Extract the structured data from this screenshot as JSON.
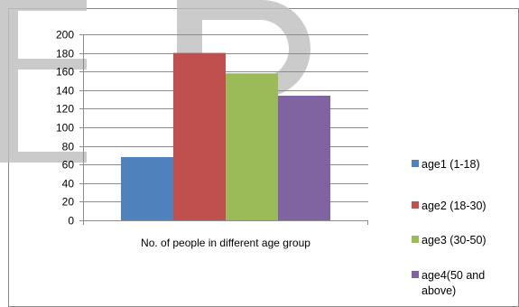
{
  "chart_data": {
    "type": "bar",
    "categories": [
      "No. of people in different age group"
    ],
    "series": [
      {
        "name": "age1 (1-18)",
        "values": [
          68
        ],
        "color": "#4f81bd"
      },
      {
        "name": "age2 (18-30)",
        "values": [
          180
        ],
        "color": "#c0504d"
      },
      {
        "name": "age3 (30-50)",
        "values": [
          158
        ],
        "color": "#9bbb59"
      },
      {
        "name": "age4(50 and above)",
        "values": [
          134
        ],
        "color": "#8064a2"
      }
    ],
    "ylim": [
      0,
      200
    ],
    "yticks": [
      0,
      20,
      40,
      60,
      80,
      100,
      120,
      140,
      160,
      180,
      200
    ],
    "grid": true,
    "legend": "right",
    "legend_lines": [
      [
        "age1 (1-18)"
      ],
      [
        "age2 (18-30)"
      ],
      [
        "age3 (30-50)"
      ],
      [
        "age4(50 and",
        "above)"
      ]
    ]
  }
}
